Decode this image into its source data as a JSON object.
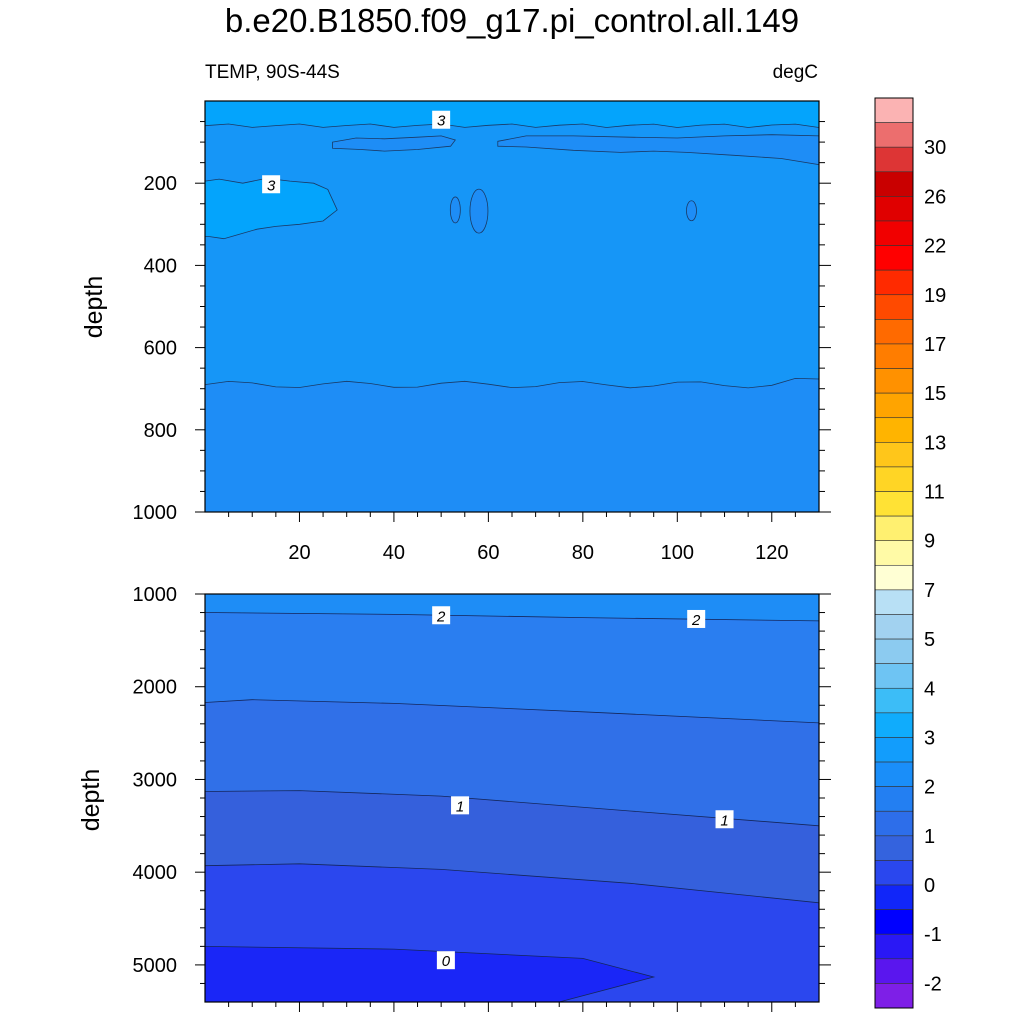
{
  "header": {
    "title": "b.e20.B1850.f09_g17.pi_control.all.149",
    "left_string": "TEMP, 90S-44S",
    "right_string": "degC"
  },
  "colors": {
    "background": "#ffffff",
    "frame": "#000000"
  },
  "chart_data": [
    {
      "type": "contour",
      "variable": "TEMP",
      "units": "degC",
      "region": "90S-44S",
      "ylabel": "depth",
      "y_reversed": true,
      "xlim": [
        0,
        130
      ],
      "ylim": [
        0,
        1000
      ],
      "x_ticks": [
        "20",
        "40",
        "60",
        "80",
        "100",
        "120"
      ],
      "y_ticks": [
        "200",
        "400",
        "600",
        "800",
        "1000"
      ],
      "fill_bands": [
        {
          "range": [
            3,
            4
          ],
          "color": "#04a4fc",
          "note": "near surface and 200-330 m patch at x 0-28"
        },
        {
          "range": [
            2.5,
            3
          ],
          "color": "#1696f7",
          "note": "main body above ~690 m"
        },
        {
          "range": [
            2,
            2.5
          ],
          "color": "#1e8df6",
          "note": "below ~690 m and thin lens near 110-150 m"
        }
      ],
      "contour_labels": [
        {
          "text": "3",
          "x": 50,
          "y": 48
        },
        {
          "text": "3",
          "x": 14,
          "y": 205
        }
      ]
    },
    {
      "type": "contour",
      "variable": "TEMP",
      "units": "degC",
      "ylabel": "depth",
      "y_reversed": true,
      "xlim": [
        0,
        130
      ],
      "ylim": [
        1000,
        5400
      ],
      "y_ticks": [
        "1000",
        "2000",
        "3000",
        "4000",
        "5000"
      ],
      "fill_bands": [
        {
          "range": [
            2,
            2.5
          ],
          "color": "#1e8df6"
        },
        {
          "range": [
            1.5,
            2
          ],
          "color": "#2a7ef0"
        },
        {
          "range": [
            1,
            1.5
          ],
          "color": "#3070e8"
        },
        {
          "range": [
            0.5,
            1
          ],
          "color": "#3560dc"
        },
        {
          "range": [
            0,
            0.5
          ],
          "color": "#2b47ee"
        },
        {
          "range": [
            -0.5,
            0
          ],
          "color": "#1a26f7"
        }
      ],
      "contour_labels": [
        {
          "text": "2",
          "x": 50,
          "y": 1240
        },
        {
          "text": "2",
          "x": 104,
          "y": 1280
        },
        {
          "text": "1",
          "x": 54,
          "y": 3290
        },
        {
          "text": "1",
          "x": 110,
          "y": 3440
        },
        {
          "text": "0",
          "x": 51,
          "y": 4960
        }
      ]
    }
  ],
  "colorbar": {
    "orientation": "vertical",
    "label_values": [
      "30",
      "26",
      "22",
      "19",
      "17",
      "15",
      "13",
      "11",
      "9",
      "7",
      "5",
      "4",
      "3",
      "2",
      "1",
      "0",
      "-1",
      "-2"
    ],
    "colors": [
      "#fbb3b3",
      "#ec6e6e",
      "#dd3535",
      "#c90000",
      "#e00000",
      "#f10000",
      "#ff0000",
      "#ff2a00",
      "#ff4a00",
      "#ff6a00",
      "#ff7d00",
      "#ff9100",
      "#ffa400",
      "#ffb400",
      "#ffc61a",
      "#ffd525",
      "#ffe235",
      "#fff070",
      "#fffaa6",
      "#ffffd4",
      "#b8e0f5",
      "#a2d2f0",
      "#8ccbf0",
      "#6ec4f3",
      "#3cbdf7",
      "#10acfc",
      "#129dfc",
      "#1a8ef9",
      "#237ff2",
      "#2d6eea",
      "#3463de",
      "#2a47ee",
      "#1126f9",
      "#0000ff",
      "#2a18f5",
      "#5a16ee",
      "#7e1fe7"
    ]
  }
}
